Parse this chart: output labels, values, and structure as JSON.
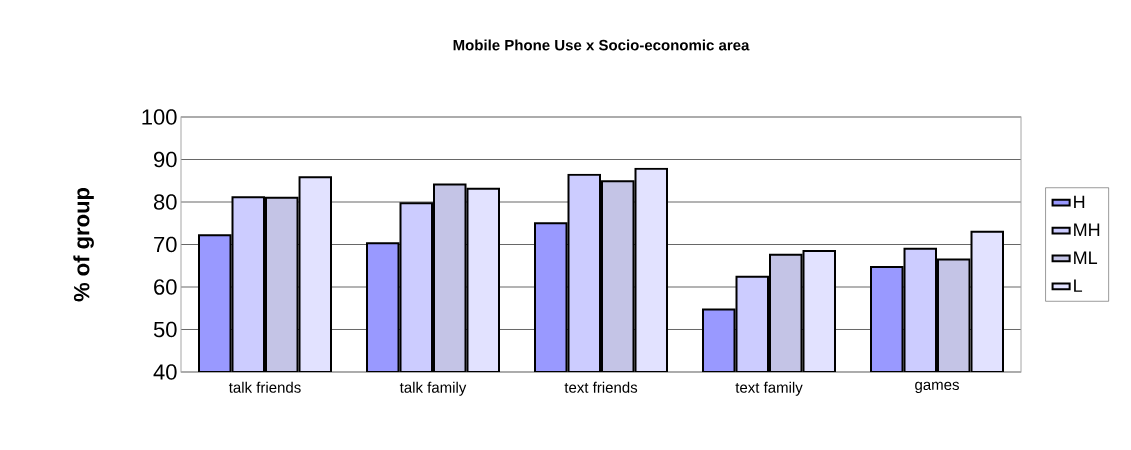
{
  "chart_data": {
    "type": "bar",
    "title": "Mobile Phone Use x Socio-economic area",
    "ylabel": "% of group",
    "categories": [
      "talk friends",
      "talk family",
      "text friends",
      "text family",
      "games"
    ],
    "series": [
      {
        "name": "H",
        "color": "#9999ff",
        "values": [
          72.2,
          70.3,
          75.0,
          54.7,
          64.7
        ]
      },
      {
        "name": "MH",
        "color": "#ccccff",
        "values": [
          81.1,
          79.7,
          86.4,
          62.4,
          69.0
        ]
      },
      {
        "name": "ML",
        "color": "#c4c4e6",
        "values": [
          81.0,
          84.1,
          84.9,
          67.6,
          66.5
        ]
      },
      {
        "name": "L",
        "color": "#e2e2ff",
        "values": [
          85.8,
          83.1,
          87.8,
          68.5,
          73.0
        ]
      }
    ],
    "ylim": [
      40,
      100
    ],
    "yticks": [
      40,
      50,
      60,
      70,
      80,
      90,
      100
    ],
    "grid": "y",
    "legend": "right"
  }
}
